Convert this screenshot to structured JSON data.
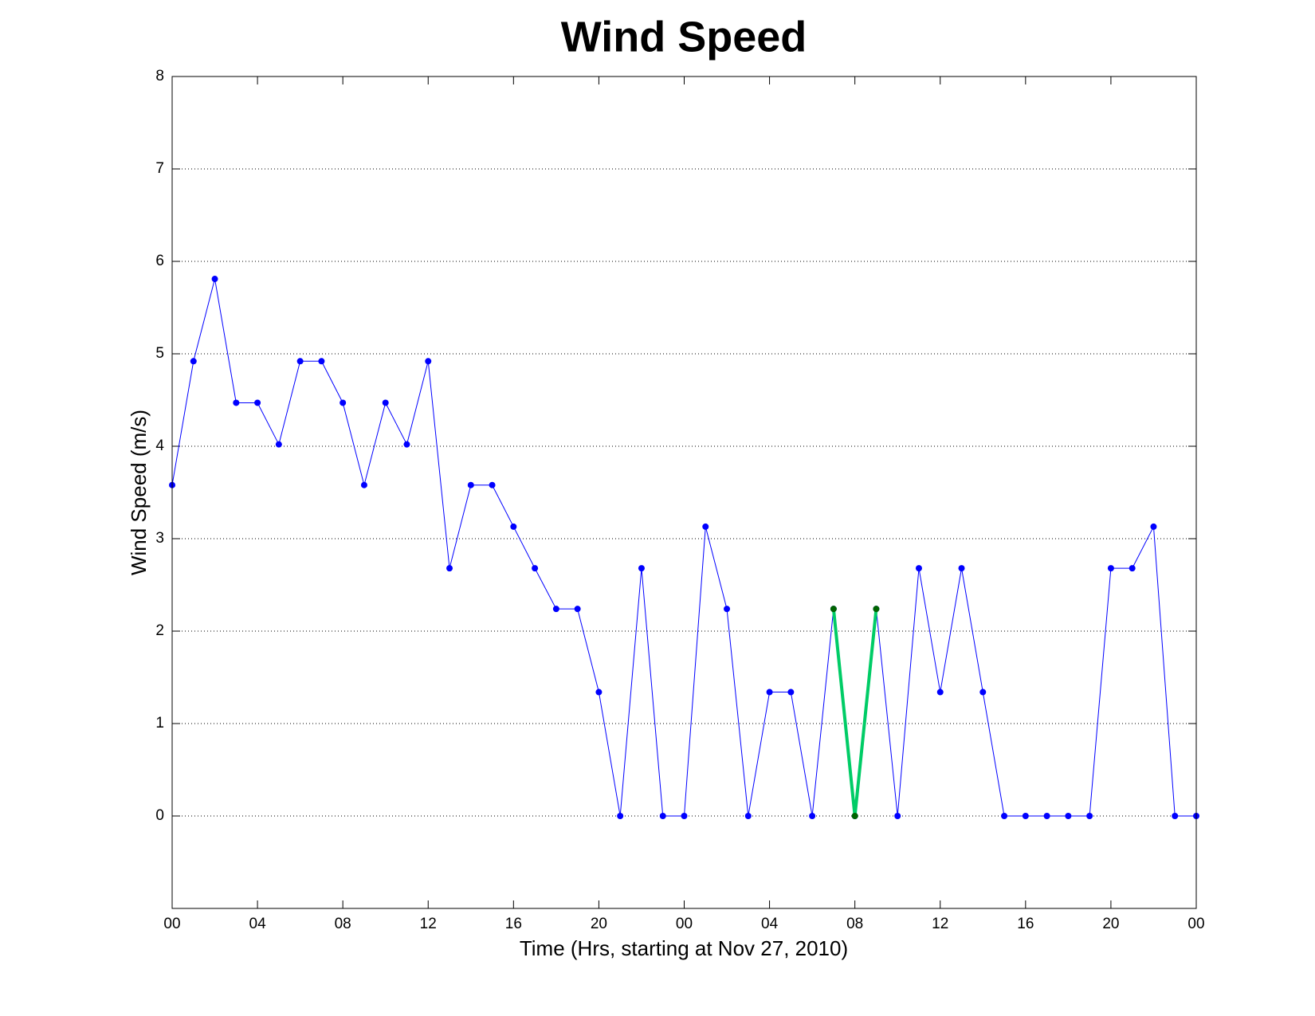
{
  "chart_data": {
    "type": "line",
    "title": "Wind Speed",
    "xlabel": "Time (Hrs, starting at Nov 27, 2010)",
    "ylabel": "Wind Speed (m/s)",
    "xlim": [
      0,
      48
    ],
    "ylim": [
      -1,
      8
    ],
    "xticks": [
      {
        "value": 0,
        "label": "00"
      },
      {
        "value": 4,
        "label": "04"
      },
      {
        "value": 8,
        "label": "08"
      },
      {
        "value": 12,
        "label": "12"
      },
      {
        "value": 16,
        "label": "16"
      },
      {
        "value": 20,
        "label": "20"
      },
      {
        "value": 24,
        "label": "00"
      },
      {
        "value": 28,
        "label": "04"
      },
      {
        "value": 32,
        "label": "08"
      },
      {
        "value": 36,
        "label": "12"
      },
      {
        "value": 40,
        "label": "16"
      },
      {
        "value": 44,
        "label": "20"
      },
      {
        "value": 48,
        "label": "00"
      }
    ],
    "yticks": [
      0,
      1,
      2,
      3,
      4,
      5,
      6,
      7,
      8
    ],
    "grid": true,
    "series": [
      {
        "color": "#0000ff",
        "marker_color": "#0000ff",
        "line_width": 1,
        "x": [
          0,
          1,
          2,
          3,
          4,
          5,
          6,
          7,
          8,
          9,
          10,
          11,
          12,
          13,
          14,
          15,
          16,
          17,
          18,
          19,
          20,
          21,
          22,
          23,
          24,
          25,
          26,
          27,
          28,
          29,
          30,
          31,
          32,
          33,
          34,
          35,
          36,
          37,
          38,
          39,
          40,
          41,
          42,
          43,
          44,
          45,
          46,
          47,
          48
        ],
        "values": [
          3.58,
          4.92,
          5.81,
          4.47,
          4.47,
          4.02,
          4.92,
          4.92,
          4.47,
          3.58,
          4.47,
          4.02,
          4.92,
          2.68,
          3.58,
          3.58,
          3.13,
          2.68,
          2.24,
          2.24,
          1.34,
          0,
          2.68,
          0,
          0,
          3.13,
          2.24,
          0,
          1.34,
          1.34,
          0,
          2.24,
          0,
          2.24,
          0,
          2.68,
          1.34,
          2.68,
          1.34,
          0,
          0,
          0,
          0,
          0,
          2.68,
          2.68,
          3.13,
          0,
          0
        ]
      },
      {
        "color": "#00cc66",
        "marker_color": "#006400",
        "line_width": 4,
        "x": [
          31,
          32,
          33
        ],
        "values": [
          2.24,
          0,
          2.24
        ]
      }
    ]
  }
}
